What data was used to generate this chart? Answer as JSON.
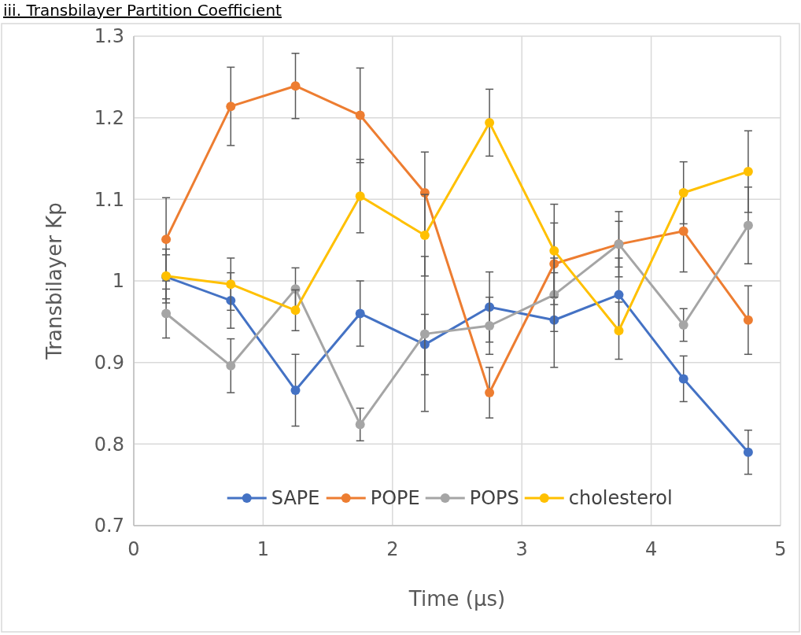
{
  "chart_data": {
    "type": "line",
    "title": "iii. Transbilayer Partition Coefficient",
    "xlabel": "Time (µs)",
    "ylabel": "Transbilayer Kp",
    "x": [
      0.25,
      0.75,
      1.25,
      1.75,
      2.25,
      2.75,
      3.25,
      3.75,
      4.25,
      4.75
    ],
    "xlim": [
      0,
      5
    ],
    "xticks": [
      0,
      1,
      2,
      3,
      4,
      5
    ],
    "ylim": [
      0.7,
      1.3
    ],
    "yticks": [
      {
        "value": 0.7,
        "label": "0.7"
      },
      {
        "value": 0.8,
        "label": "0.8"
      },
      {
        "value": 0.9,
        "label": "0.9"
      },
      {
        "value": 1,
        "label": "1"
      },
      {
        "value": 1.1,
        "label": "1.1"
      },
      {
        "value": 1.2,
        "label": "1.2"
      },
      {
        "value": 1.3,
        "label": "1.3"
      }
    ],
    "grid": true,
    "legend": "bottom",
    "marker": "circle",
    "line_style": "solid",
    "series": [
      {
        "name": "SAPE",
        "color": "#4472c4",
        "values": [
          1.005,
          0.976,
          0.866,
          0.96,
          0.922,
          0.968,
          0.952,
          0.983,
          0.88,
          0.79
        ],
        "errors": [
          0.027,
          0.034,
          0.044,
          0.04,
          0.037,
          0.043,
          0.058,
          0.045,
          0.028,
          0.027
        ]
      },
      {
        "name": "POPE",
        "color": "#ed7d31",
        "values": [
          1.051,
          1.214,
          1.239,
          1.203,
          1.108,
          0.863,
          1.021,
          1.045,
          1.061,
          0.952
        ],
        "errors": [
          0.051,
          0.048,
          0.04,
          0.058,
          0.05,
          0.031,
          0.05,
          0.028,
          0.05,
          0.042
        ]
      },
      {
        "name": "POPS",
        "color": "#a5a5a5",
        "values": [
          0.96,
          0.896,
          0.99,
          0.824,
          0.935,
          0.945,
          0.983,
          1.045,
          0.946,
          1.068
        ],
        "errors": [
          0.03,
          0.033,
          0.026,
          0.02,
          0.095,
          0.035,
          0.045,
          0.04,
          0.02,
          0.047
        ]
      },
      {
        "name": "cholesterol",
        "color": "#ffc000",
        "values": [
          1.006,
          0.996,
          0.964,
          1.104,
          1.056,
          1.194,
          1.037,
          0.939,
          1.108,
          1.134
        ],
        "errors": [
          0.033,
          0.032,
          0.025,
          0.045,
          0.05,
          0.041,
          0.057,
          0.035,
          0.038,
          0.05
        ]
      }
    ]
  }
}
